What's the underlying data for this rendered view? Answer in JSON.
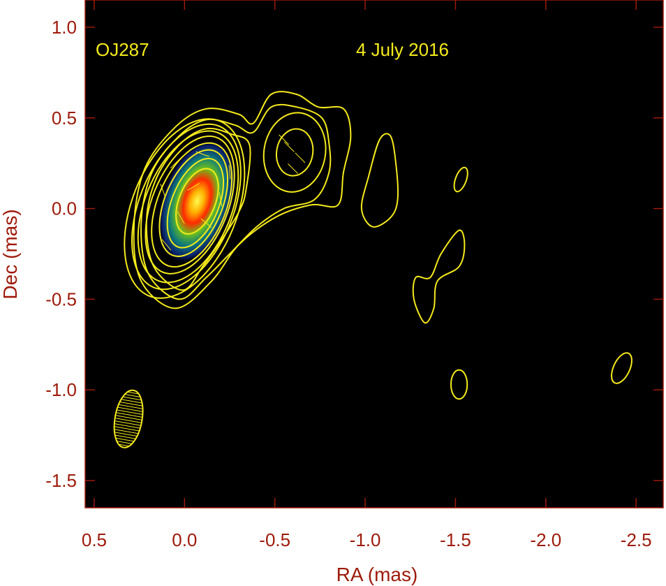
{
  "chart_data": {
    "type": "contour",
    "source_label": "OJ287",
    "date_label": "4 July 2016",
    "xlabel": "RA (mas)",
    "ylabel": "Dec (mas)",
    "xlim": [
      0.55,
      -2.65
    ],
    "ylim": [
      -1.65,
      1.15
    ],
    "x_ticks": [
      0.5,
      0.0,
      -0.5,
      -1.0,
      -1.5,
      -2.0,
      -2.5
    ],
    "x_tick_labels": [
      "0.5",
      "0.0",
      "-0.5",
      "-1.0",
      "-1.5",
      "-2.0",
      "-2.5"
    ],
    "y_ticks": [
      1.0,
      0.5,
      0.0,
      -0.5,
      -1.0,
      -1.5
    ],
    "y_tick_labels": [
      "1.0",
      "0.5",
      "0.0",
      "-0.5",
      "-1.0",
      "-1.5"
    ],
    "colors": {
      "plot_background": "#000000",
      "contour": "#f4ea1c",
      "axis_text": "#9e1a0a",
      "frame": "#9e1a0a"
    },
    "core": {
      "x": -0.07,
      "y": 0.04
    },
    "core_contours": [
      {
        "x": 0.0,
        "y": 0.0,
        "rx": 0.29,
        "ry": 0.52,
        "rot": 22
      },
      {
        "x": -0.01,
        "y": 0.01,
        "rx": 0.26,
        "ry": 0.48,
        "rot": 22
      },
      {
        "x": -0.02,
        "y": 0.01,
        "rx": 0.24,
        "ry": 0.44,
        "rot": 22
      },
      {
        "x": -0.03,
        "y": 0.02,
        "rx": 0.21,
        "ry": 0.4,
        "rot": 22
      },
      {
        "x": -0.04,
        "y": 0.02,
        "rx": 0.19,
        "ry": 0.36,
        "rot": 22
      },
      {
        "x": -0.05,
        "y": 0.03,
        "rx": 0.16,
        "ry": 0.31,
        "rot": 22
      },
      {
        "x": -0.06,
        "y": 0.03,
        "rx": 0.13,
        "ry": 0.26,
        "rot": 22
      },
      {
        "x": -0.07,
        "y": 0.04,
        "rx": 0.1,
        "ry": 0.19,
        "rot": 22
      }
    ],
    "jet_contours": [
      [
        [
          0.05,
          -0.55
        ],
        [
          0.24,
          -0.4
        ],
        [
          0.28,
          -0.1
        ],
        [
          0.22,
          0.22
        ],
        [
          0.05,
          0.45
        ],
        [
          -0.12,
          0.55
        ],
        [
          -0.3,
          0.52
        ],
        [
          -0.38,
          0.47
        ],
        [
          -0.48,
          0.63
        ],
        [
          -0.62,
          0.63
        ],
        [
          -0.74,
          0.56
        ],
        [
          -0.88,
          0.55
        ],
        [
          -0.92,
          0.4
        ],
        [
          -0.88,
          0.2
        ],
        [
          -0.85,
          0.02
        ],
        [
          -0.7,
          0.02
        ],
        [
          -0.5,
          -0.05
        ],
        [
          -0.3,
          -0.2
        ],
        [
          -0.15,
          -0.4
        ]
      ],
      [
        [
          0.03,
          -0.5
        ],
        [
          0.2,
          -0.36
        ],
        [
          0.24,
          -0.08
        ],
        [
          0.18,
          0.2
        ],
        [
          0.03,
          0.4
        ],
        [
          -0.12,
          0.49
        ],
        [
          -0.28,
          0.46
        ],
        [
          -0.38,
          0.42
        ],
        [
          -0.48,
          0.56
        ],
        [
          -0.62,
          0.56
        ],
        [
          -0.76,
          0.5
        ],
        [
          -0.8,
          0.36
        ],
        [
          -0.8,
          0.2
        ],
        [
          -0.72,
          0.05
        ],
        [
          -0.55,
          0.0
        ],
        [
          -0.4,
          -0.1
        ],
        [
          -0.25,
          -0.25
        ],
        [
          -0.12,
          -0.38
        ]
      ],
      [
        [
          0.01,
          -0.45
        ],
        [
          0.17,
          -0.32
        ],
        [
          0.21,
          -0.06
        ],
        [
          0.15,
          0.18
        ],
        [
          0.02,
          0.36
        ],
        [
          -0.12,
          0.44
        ],
        [
          -0.26,
          0.41
        ],
        [
          -0.36,
          0.35
        ],
        [
          -0.34,
          0.1
        ],
        [
          -0.3,
          -0.02
        ],
        [
          -0.2,
          -0.18
        ],
        [
          -0.1,
          -0.32
        ]
      ]
    ],
    "knot_contours": [
      {
        "x": -0.61,
        "y": 0.31,
        "rx": 0.17,
        "ry": 0.22,
        "rot": 10
      },
      {
        "x": -0.61,
        "y": 0.31,
        "rx": 0.1,
        "ry": 0.13,
        "rot": 10
      }
    ],
    "isolated_contours": [
      [
        [
          -1.08,
          0.38
        ],
        [
          -1.14,
          0.4
        ],
        [
          -1.17,
          0.25
        ],
        [
          -1.18,
          0.05
        ],
        [
          -1.14,
          -0.05
        ],
        [
          -1.04,
          -0.1
        ],
        [
          -0.98,
          0.0
        ],
        [
          -1.02,
          0.18
        ]
      ],
      [
        [
          -1.36,
          -0.38
        ],
        [
          -1.42,
          -0.25
        ],
        [
          -1.52,
          -0.12
        ],
        [
          -1.55,
          -0.2
        ],
        [
          -1.52,
          -0.32
        ],
        [
          -1.4,
          -0.4
        ],
        [
          -1.38,
          -0.55
        ],
        [
          -1.33,
          -0.63
        ],
        [
          -1.27,
          -0.5
        ],
        [
          -1.28,
          -0.38
        ]
      ],
      {
        "x": -1.53,
        "y": 0.16,
        "rx": 0.03,
        "ry": 0.07,
        "rot": 20
      },
      {
        "x": -1.52,
        "y": -0.97,
        "rx": 0.045,
        "ry": 0.08,
        "rot": 0
      },
      {
        "x": -2.42,
        "y": -0.88,
        "rx": 0.045,
        "ry": 0.09,
        "rot": 25
      }
    ],
    "beam": {
      "x": 0.31,
      "y": -1.16,
      "rx": 0.075,
      "ry": 0.16,
      "rot": 10
    }
  }
}
